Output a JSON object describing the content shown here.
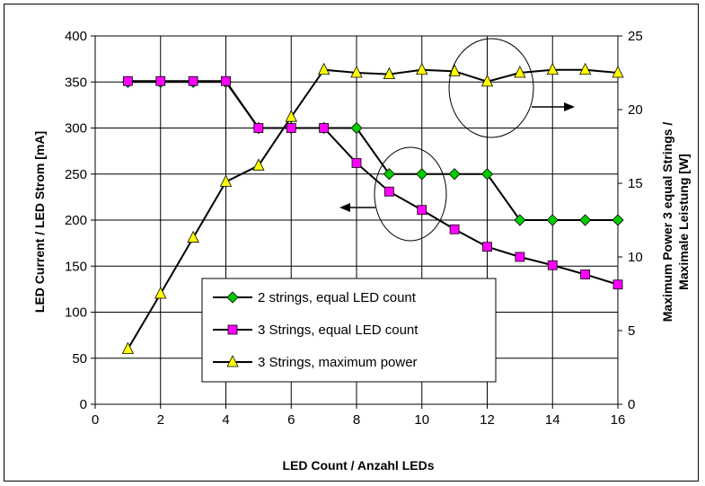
{
  "chart_data": {
    "type": "line",
    "title": "",
    "xlabel": "LED Count / Anzahl LEDs",
    "ylabel": "LED Current / LED Strom [mA]",
    "y2label_line1": "Maximum Power 3 equal Strings /",
    "y2label_line2": "Maximale Leistung [W]",
    "xlim": [
      0,
      16
    ],
    "ylim": [
      0,
      400
    ],
    "y2lim": [
      0,
      25
    ],
    "xticks": [
      "0",
      "2",
      "4",
      "6",
      "8",
      "10",
      "12",
      "14",
      "16"
    ],
    "yticks": [
      "0",
      "50",
      "100",
      "150",
      "200",
      "250",
      "300",
      "350",
      "400"
    ],
    "y2ticks": [
      "0",
      "5",
      "10",
      "15",
      "20",
      "25"
    ],
    "grid": true,
    "legend_position": "lower-center",
    "series": [
      {
        "name": "2 strings, equal LED count",
        "axis": "left",
        "marker": "diamond",
        "color": "#00cc00",
        "x": [
          1,
          2,
          3,
          4,
          5,
          6,
          7,
          8,
          9,
          10,
          11,
          12,
          13,
          14,
          15,
          16
        ],
        "y": [
          350,
          350,
          350,
          350,
          300,
          300,
          300,
          300,
          250,
          250,
          250,
          250,
          200,
          200,
          200,
          200
        ]
      },
      {
        "name": "3 Strings, equal LED count",
        "axis": "left",
        "marker": "square",
        "color": "#ff00ff",
        "x": [
          1,
          2,
          3,
          4,
          5,
          6,
          7,
          8,
          9,
          10,
          11,
          12,
          13,
          14,
          15,
          16
        ],
        "y": [
          351,
          351,
          351,
          351,
          300,
          300,
          300,
          262,
          231,
          211,
          190,
          171,
          160,
          151,
          141,
          130
        ]
      },
      {
        "name": "3 Strings, maximum power",
        "axis": "right",
        "marker": "triangle",
        "color": "#ffff00",
        "x": [
          1,
          2,
          3,
          4,
          5,
          6,
          7,
          8,
          9,
          10,
          11,
          12,
          13,
          14,
          15,
          16
        ],
        "y": [
          3.75,
          7.5,
          11.3,
          15.1,
          16.2,
          19.5,
          22.7,
          22.5,
          22.4,
          22.7,
          22.6,
          21.9,
          22.5,
          22.7,
          22.7,
          22.5
        ]
      }
    ],
    "annotations": [
      "ellipse with arrow pointing left (left axis)",
      "ellipse with arrow pointing right (right axis)"
    ]
  }
}
